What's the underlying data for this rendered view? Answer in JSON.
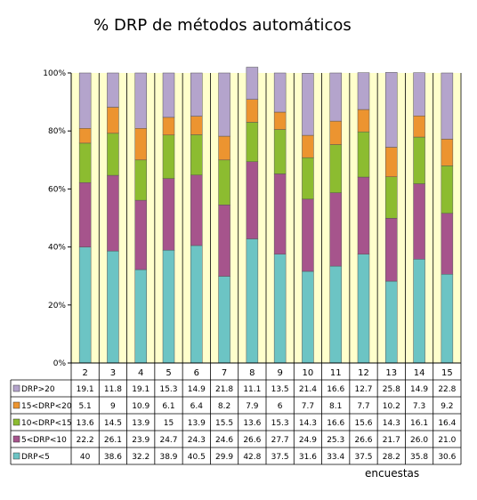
{
  "chart_data": {
    "type": "bar",
    "stacked": true,
    "normalized_percent": true,
    "title": "% DRP de métodos automáticos",
    "xlabel": "encuestas",
    "ylabel": "",
    "ylim": [
      0,
      100
    ],
    "y_ticks": [
      "0%",
      "20%",
      "40%",
      "60%",
      "80%",
      "100%"
    ],
    "grid": true,
    "legend": "data-table-left",
    "categories": [
      "2",
      "3",
      "4",
      "5",
      "6",
      "7",
      "8",
      "9",
      "10",
      "11",
      "12",
      "13",
      "14",
      "15"
    ],
    "series": [
      {
        "name": "DRP<5",
        "color": "#6cc4c4",
        "values": [
          40,
          38.6,
          32.2,
          38.9,
          40.5,
          29.9,
          42.8,
          37.5,
          31.6,
          33.4,
          37.5,
          28.2,
          35.8,
          30.6
        ]
      },
      {
        "name": "5<DRP<10",
        "color": "#a6548c",
        "values": [
          22.2,
          26.1,
          23.9,
          24.7,
          24.3,
          24.6,
          26.6,
          27.7,
          24.9,
          25.3,
          26.6,
          21.7,
          26.0,
          21.0
        ]
      },
      {
        "name": "10<DRP<15",
        "color": "#8cbc30",
        "values": [
          13.6,
          14.5,
          13.9,
          15,
          13.9,
          15.5,
          13.6,
          15.3,
          14.3,
          16.6,
          15.6,
          14.3,
          16.1,
          16.4
        ]
      },
      {
        "name": "15<DRP<20",
        "color": "#ec9430",
        "values": [
          5.1,
          9,
          10.9,
          6.1,
          6.4,
          8.2,
          7.9,
          6,
          7.7,
          8.1,
          7.7,
          10.2,
          7.3,
          9.2
        ]
      },
      {
        "name": "DRP>20",
        "color": "#b4a4cc",
        "values": [
          19.1,
          11.8,
          19.1,
          15.3,
          14.9,
          21.8,
          11.1,
          13.5,
          21.4,
          16.6,
          12.7,
          25.8,
          14.9,
          22.8
        ]
      }
    ],
    "table_rows": [
      {
        "series": "DRP>20",
        "cells": [
          "19.1",
          "11.8",
          "19.1",
          "15.3",
          "14.9",
          "21.8",
          "11.1",
          "13.5",
          "21.4",
          "16.6",
          "12.7",
          "25.8",
          "14.9",
          "22.8"
        ]
      },
      {
        "series": "15<DRP<20",
        "cells": [
          "5.1",
          "9",
          "10.9",
          "6.1",
          "6.4",
          "8.2",
          "7.9",
          "6",
          "7.7",
          "8.1",
          "7.7",
          "10.2",
          "7.3",
          "9.2"
        ]
      },
      {
        "series": "10<DRP<15",
        "cells": [
          "13.6",
          "14.5",
          "13.9",
          "15",
          "13.9",
          "15.5",
          "13.6",
          "15.3",
          "14.3",
          "16.6",
          "15.6",
          "14.3",
          "16.1",
          "16.4"
        ]
      },
      {
        "series": "5<DRP<10",
        "cells": [
          "22.2",
          "26.1",
          "23.9",
          "24.7",
          "24.3",
          "24.6",
          "26.6",
          "27.7",
          "24.9",
          "25.3",
          "26.6",
          "21.7",
          "26.0",
          "21.0"
        ]
      },
      {
        "series": "DRP<5",
        "cells": [
          "40",
          "38.6",
          "32.2",
          "38.9",
          "40.5",
          "29.9",
          "42.8",
          "37.5",
          "31.6",
          "33.4",
          "37.5",
          "28.2",
          "35.8",
          "30.6"
        ]
      }
    ],
    "plot_background": "#ffffcc"
  }
}
